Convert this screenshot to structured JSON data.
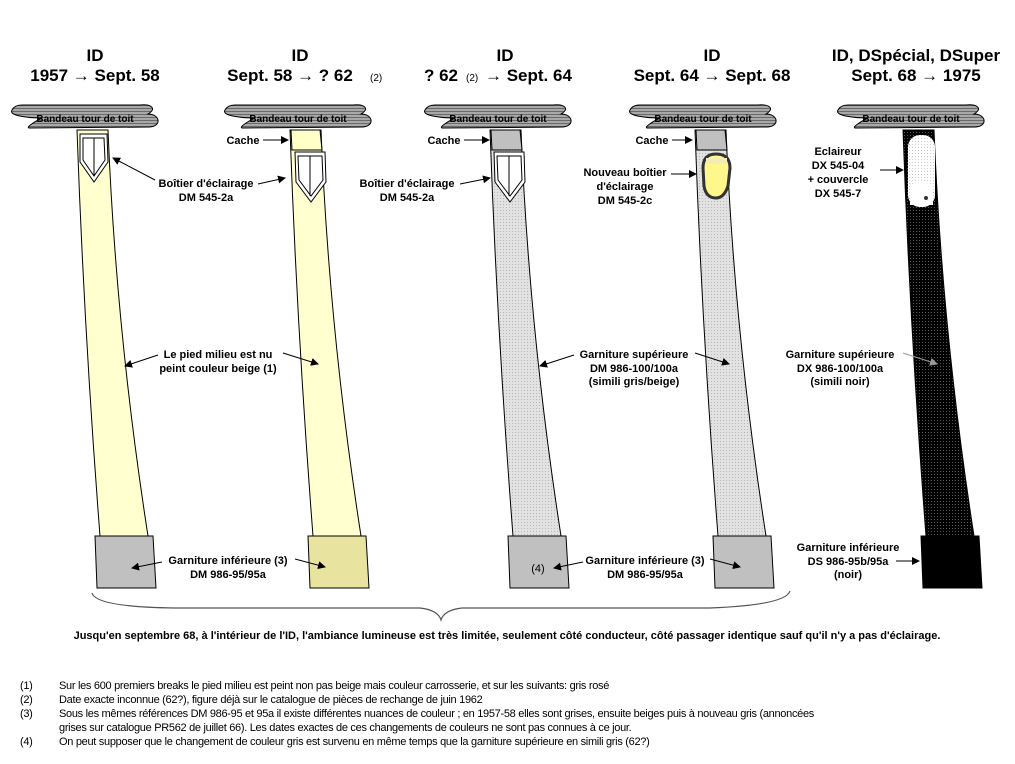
{
  "columns": [
    {
      "model": "ID",
      "period": "1957 → Sept. 58",
      "period_note": "",
      "pillar_color": "#ffffd0",
      "lower_color": "#c0c0c0"
    },
    {
      "model": "ID",
      "period": "Sept. 58 → ? 62",
      "period_note": "(2)",
      "pillar_color": "#ffffd0",
      "lower_color": "#e8e4a0"
    },
    {
      "model": "ID",
      "period": "? 62",
      "period_note": "(2)",
      "period_end": "→ Sept. 64",
      "pillar_color": "#dcdcdc",
      "lower_color": "#c0c0c0"
    },
    {
      "model": "ID",
      "period": "Sept. 64 → Sept. 68",
      "period_note": "",
      "pillar_color": "#dcdcdc",
      "lower_color": "#c0c0c0"
    },
    {
      "model": "ID, DSpécial, DSuper",
      "period": "Sept. 68 → 1975",
      "period_note": "",
      "pillar_color": "#111111",
      "lower_color": "#000000"
    }
  ],
  "roof_band_label": "Bandeau tour de toit",
  "labels": {
    "cache": "Cache",
    "boitier": [
      "Boîtier d'éclairage",
      "DM 545-2a"
    ],
    "nouveau_boitier": [
      "Nouveau boîtier",
      "d'éclairage",
      "DM 545-2c"
    ],
    "eclaireur": [
      "Eclaireur",
      "DX 545-04",
      "+ couvercle",
      "DX 545-7"
    ],
    "pied_milieu": [
      "Le pied milieu est nu",
      "peint couleur beige (1)"
    ],
    "garniture_sup_gris": [
      "Garniture supérieure",
      "DM 986-100/100a",
      "(simili gris/beige)"
    ],
    "garniture_sup_noir": [
      "Garniture supérieure",
      "DX 986-100/100a",
      "(simili noir)"
    ],
    "garniture_inf": [
      "Garniture inférieure (3)",
      "DM 986-95/95a"
    ],
    "garniture_inf_noir": [
      "Garniture inférieure",
      "DS 986-95b/95a",
      "(noir)"
    ],
    "note_4": "(4)"
  },
  "summary": "Jusqu'en septembre 68, à l'intérieur de l'ID, l'ambiance lumineuse est très limitée, seulement côté conducteur, côté passager identique sauf qu'il n'y a pas d'éclairage.",
  "footnotes": [
    {
      "num": "(1)",
      "lines": [
        "Sur les 600 premiers breaks le pied milieu est peint non pas beige mais couleur carrosserie, et sur les suivants: gris rosé"
      ]
    },
    {
      "num": "(2)",
      "lines": [
        "Date exacte inconnue (62?), figure déjà sur le catalogue de pièces de rechange de juin 1962"
      ]
    },
    {
      "num": "(3)",
      "lines": [
        "Sous les mêmes références DM 986-95 et 95a il existe différentes nuances de couleur ; en 1957-58 elles sont grises, ensuite beiges puis à nouveau gris (annoncées",
        "grises sur catalogue PR562 de juillet 66). Les dates exactes de ces changements de couleurs ne sont pas connues à ce jour."
      ]
    },
    {
      "num": "(4)",
      "lines": [
        "On peut supposer que le changement de couleur gris est survenu en même temps que la garniture supérieure en simili gris (62?)"
      ]
    }
  ]
}
